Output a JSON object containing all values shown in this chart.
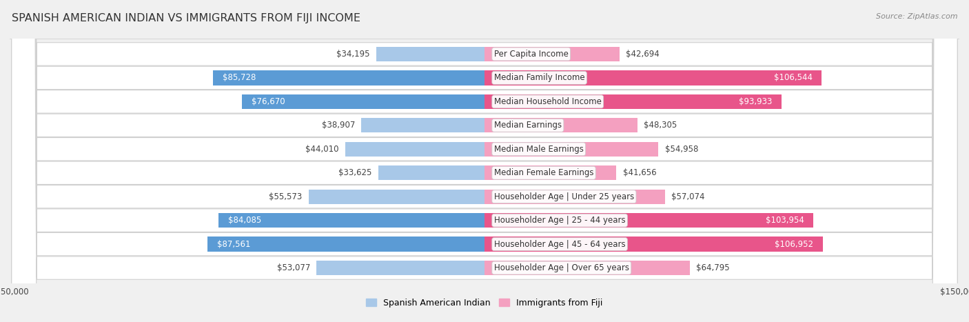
{
  "title": "SPANISH AMERICAN INDIAN VS IMMIGRANTS FROM FIJI INCOME",
  "source": "Source: ZipAtlas.com",
  "categories": [
    "Per Capita Income",
    "Median Family Income",
    "Median Household Income",
    "Median Earnings",
    "Median Male Earnings",
    "Median Female Earnings",
    "Householder Age | Under 25 years",
    "Householder Age | 25 - 44 years",
    "Householder Age | 45 - 64 years",
    "Householder Age | Over 65 years"
  ],
  "left_values": [
    34195,
    85728,
    76670,
    38907,
    44010,
    33625,
    55573,
    84085,
    87561,
    53077
  ],
  "right_values": [
    42694,
    106544,
    93933,
    48305,
    54958,
    41656,
    57074,
    103954,
    106952,
    64795
  ],
  "left_labels": [
    "$34,195",
    "$85,728",
    "$76,670",
    "$38,907",
    "$44,010",
    "$33,625",
    "$55,573",
    "$84,085",
    "$87,561",
    "$53,077"
  ],
  "right_labels": [
    "$42,694",
    "$106,544",
    "$93,933",
    "$48,305",
    "$54,958",
    "$41,656",
    "$57,074",
    "$103,954",
    "$106,952",
    "$64,795"
  ],
  "left_color_light": "#a8c8e8",
  "left_color_strong": "#5b9bd5",
  "right_color_light": "#f4a0c0",
  "right_color_strong": "#e8558a",
  "strong_threshold": 70000,
  "bar_height": 0.62,
  "x_max": 150000,
  "legend_left": "Spanish American Indian",
  "legend_right": "Immigrants from Fiji",
  "bg_color": "#f0f0f0",
  "row_bg_color": "#ffffff",
  "title_fontsize": 11.5,
  "label_fontsize": 8.5,
  "category_fontsize": 8.5
}
